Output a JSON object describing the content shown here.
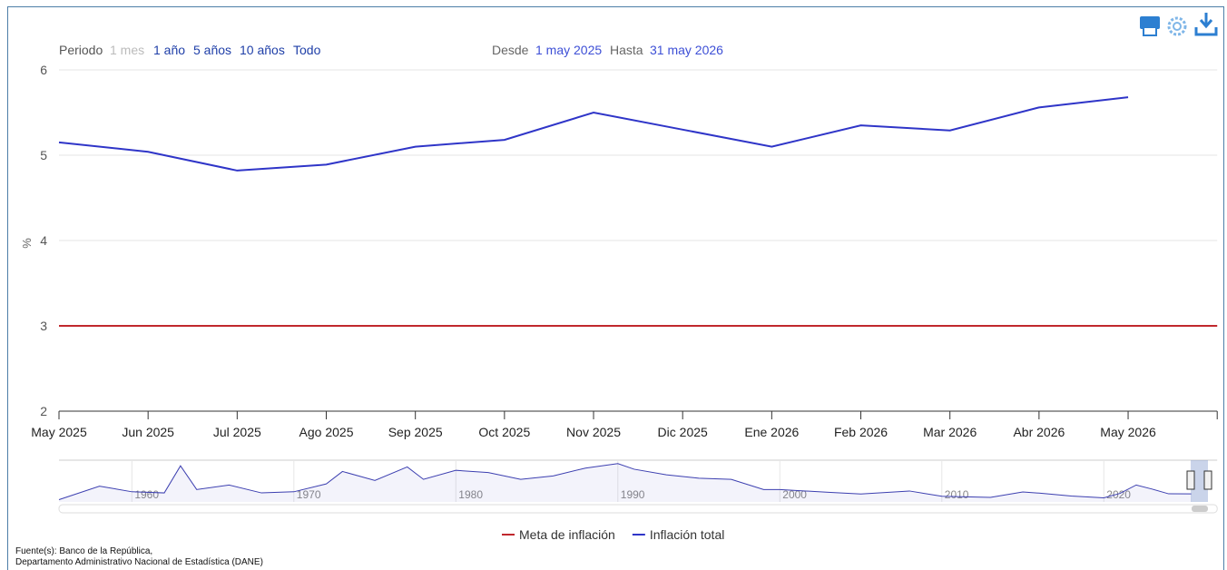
{
  "toolbar": {
    "period_label": "Periodo",
    "buttons": [
      "1 mes",
      "1 año",
      "5 años",
      "10 años",
      "Todo"
    ],
    "from_label": "Desde",
    "from": "1 may 2025",
    "to_label": "Hasta",
    "to": "31 may 2026"
  },
  "chart_data": {
    "type": "line",
    "ylabel": "%",
    "categories": [
      "May 2025",
      "Jun 2025",
      "Jul 2025",
      "Ago 2025",
      "Sep 2025",
      "Oct 2025",
      "Nov 2025",
      "Dic 2025",
      "Ene 2026",
      "Feb 2026",
      "Mar 2026",
      "Abr 2026",
      "May 2026",
      null
    ],
    "series": [
      {
        "name": "Meta de inflación",
        "color": "#c0282d",
        "values": [
          3,
          3,
          3,
          3,
          3,
          3,
          3,
          3,
          3,
          3,
          3,
          3,
          3,
          3
        ]
      },
      {
        "name": "Inflación total",
        "color": "#2f35c8",
        "values": [
          5.15,
          5.04,
          4.82,
          4.89,
          5.1,
          5.18,
          5.5,
          5.3,
          5.1,
          5.35,
          5.29,
          5.56,
          5.68,
          null
        ]
      }
    ],
    "ylim": [
      2,
      6
    ],
    "yticks": [
      2,
      3,
      4,
      5,
      6
    ],
    "grid": true,
    "legend": "bottom"
  },
  "navigator": {
    "color": "#3c3fb0",
    "x": [
      1955.5,
      1958,
      1960,
      1962,
      1963,
      1964,
      1966,
      1968,
      1970,
      1972,
      1973,
      1975,
      1977,
      1978,
      1980,
      1982,
      1984,
      1986,
      1988,
      1990,
      1991,
      1993,
      1995,
      1997,
      1999,
      2000,
      2003,
      2005,
      2008,
      2010,
      2013,
      2015,
      2016,
      2018,
      2020,
      2021,
      2022,
      2023,
      2024,
      2025.4
    ],
    "values": [
      0,
      12,
      7,
      6,
      30,
      9,
      13,
      6,
      7,
      14,
      25,
      17,
      29,
      18,
      26,
      24,
      18,
      21,
      28,
      32,
      27,
      22,
      19,
      18,
      9,
      9,
      6.5,
      5,
      7.7,
      3,
      2,
      6.8,
      5.8,
      3.2,
      1.6,
      5.6,
      13,
      9.3,
      5.2,
      5.1
    ],
    "xlim": [
      1955.5,
      2027
    ],
    "ylim": [
      -2,
      35
    ],
    "xticks": [
      1960,
      1970,
      1980,
      1990,
      2000,
      2010,
      2020
    ]
  },
  "source": [
    "Fuente(s): Banco de la República,",
    "Departamento Administrativo Nacional de Estadística (DANE)"
  ]
}
